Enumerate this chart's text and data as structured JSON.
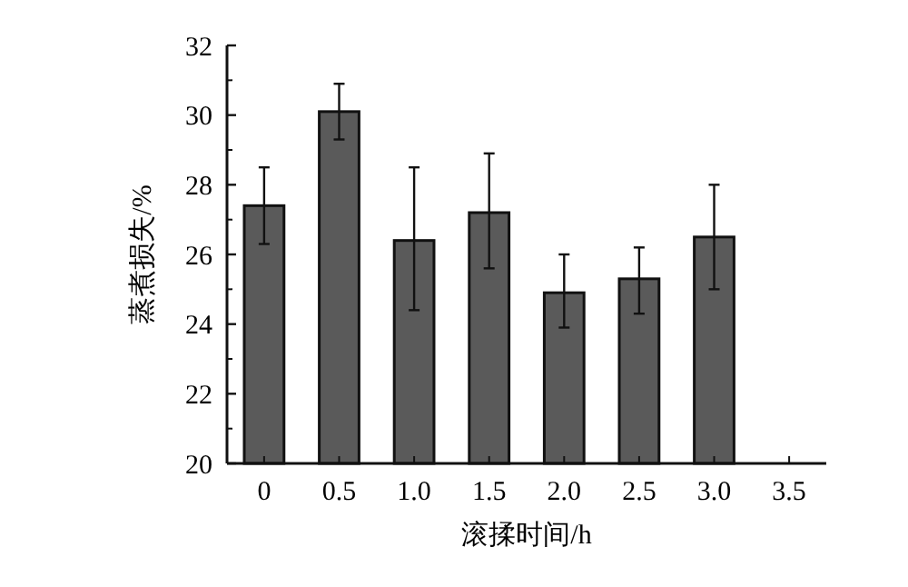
{
  "chart_data": {
    "type": "bar",
    "xlabel": "滚揉时间/h",
    "ylabel": "蒸煮损失/%",
    "categories": [
      "0",
      "0.5",
      "1.0",
      "1.5",
      "2.0",
      "2.5",
      "3.0",
      "3.5"
    ],
    "values": [
      27.4,
      30.1,
      26.4,
      27.2,
      24.9,
      25.3,
      26.5,
      null
    ],
    "errors": [
      [
        26.3,
        28.5
      ],
      [
        29.3,
        30.9
      ],
      [
        24.4,
        28.5
      ],
      [
        25.6,
        28.9
      ],
      [
        23.9,
        26.0
      ],
      [
        24.3,
        26.2
      ],
      [
        25.0,
        28.0
      ],
      null
    ],
    "color": "#5a5a5a",
    "ylim": [
      20,
      32
    ],
    "yticks": [
      20,
      22,
      24,
      26,
      28,
      30,
      32
    ],
    "grid": false
  }
}
